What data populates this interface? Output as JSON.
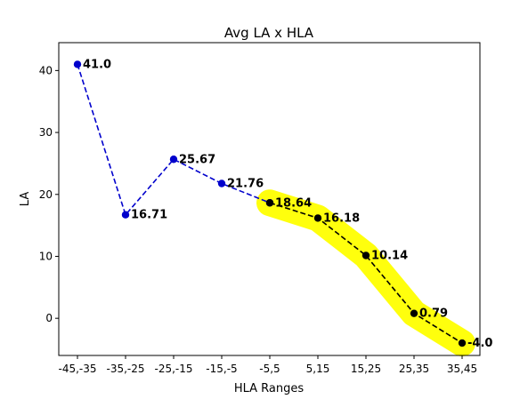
{
  "chart_data": {
    "type": "line",
    "title": "Avg LA x HLA",
    "xlabel": "HLA Ranges",
    "ylabel": "LA",
    "categories": [
      "-45,-35",
      "-35,-25",
      "-25,-15",
      "-15,-5",
      "-5,5",
      "5,15",
      "15,25",
      "25,35",
      "35,45"
    ],
    "ylim": [
      -6,
      44.5
    ],
    "yticks": [
      0,
      10,
      20,
      30,
      40
    ],
    "grid": false,
    "series": [
      {
        "color": "#0000cc",
        "style": "dashed",
        "points": [
          {
            "category": "-45,-35",
            "value": 41.0,
            "label": "41.0"
          },
          {
            "category": "-35,-25",
            "value": 16.71,
            "label": "16.71"
          },
          {
            "category": "-25,-15",
            "value": 25.67,
            "label": "25.67"
          },
          {
            "category": "-15,-5",
            "value": 21.76,
            "label": "21.76"
          },
          {
            "category": "-5,5",
            "value": 18.64,
            "label": ""
          }
        ]
      },
      {
        "color": "#000000",
        "style": "dashed",
        "highlight_color": "#ffff00",
        "points": [
          {
            "category": "-5,5",
            "value": 18.64,
            "label": "18.64"
          },
          {
            "category": "5,15",
            "value": 16.18,
            "label": "16.18"
          },
          {
            "category": "15,25",
            "value": 10.14,
            "label": "10.14"
          },
          {
            "category": "25,35",
            "value": 0.79,
            "label": "0.79"
          },
          {
            "category": "35,45",
            "value": -4.0,
            "label": "-4.0"
          }
        ]
      }
    ]
  }
}
